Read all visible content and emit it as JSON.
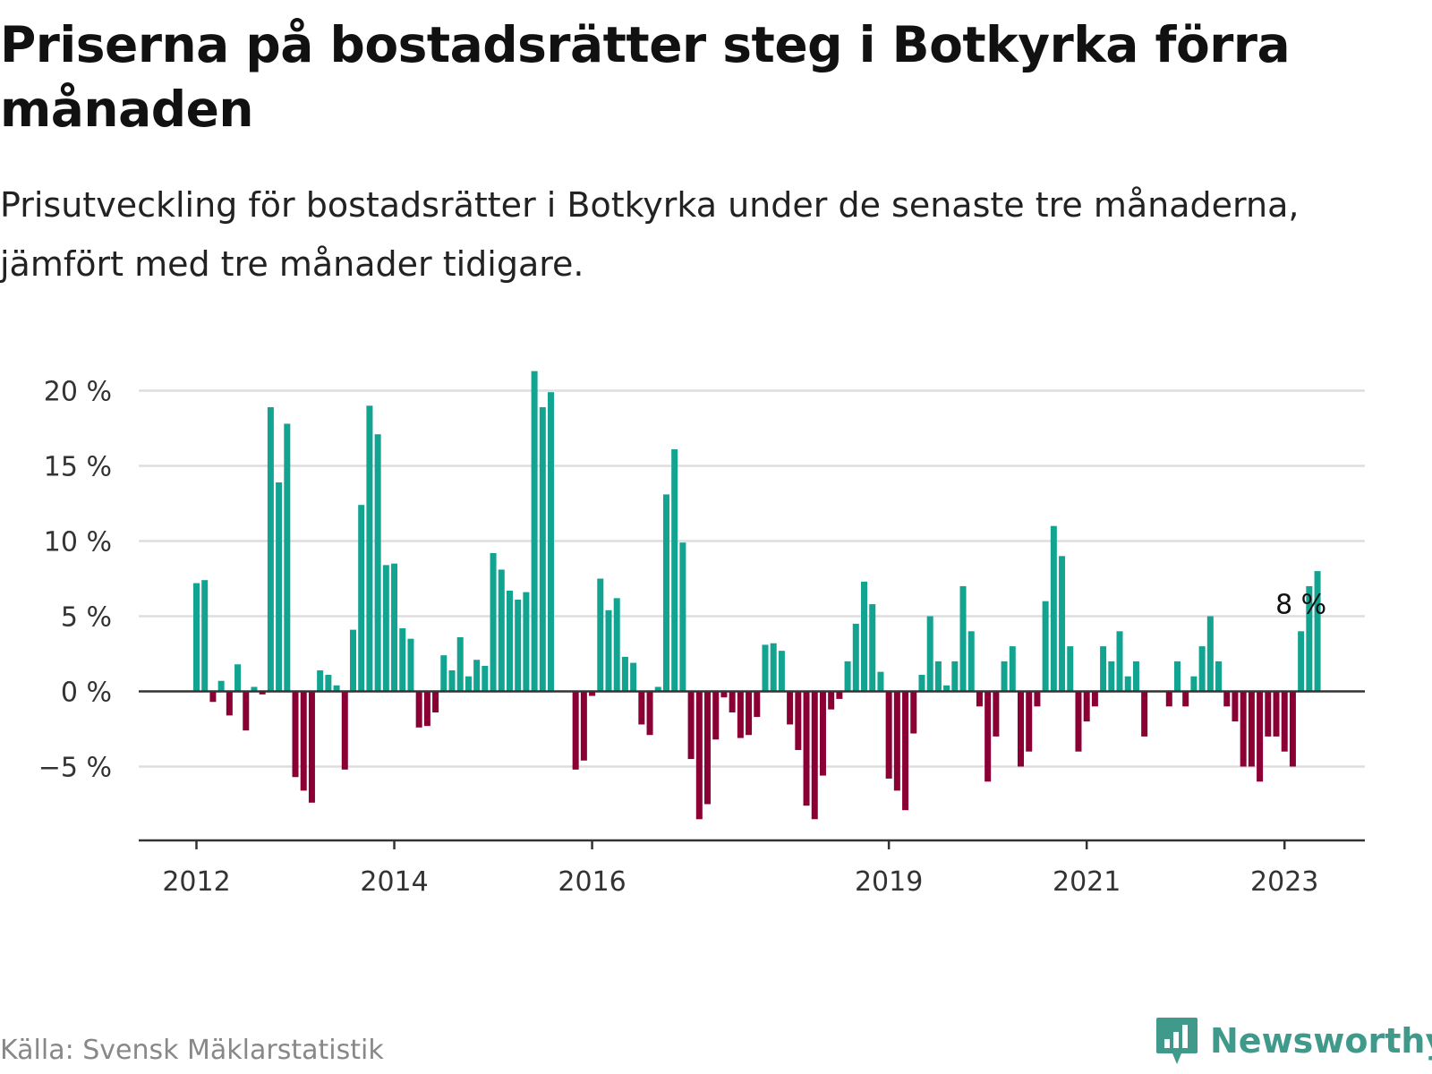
{
  "title": "Priserna på bostadsrätter steg i Botkyrka förra månaden",
  "subtitle": "Prisutveckling för bostadsrätter i Botkyrka under de senaste tre månaderna, jämfört med tre månader tidigare.",
  "source": "Källa: Svensk Mäklarstatistik",
  "brand": "Newsworthy",
  "colors": {
    "positive": "#12a391",
    "negative": "#8b0034",
    "grid": "#dddddd",
    "axis": "#333333",
    "brand": "#3f9a8c"
  },
  "chart_data": {
    "type": "bar",
    "title": "Priserna på bostadsrätter steg i Botkyrka förra månaden",
    "ylabel": "",
    "xlabel": "",
    "unit": "%",
    "ylim": [
      -10,
      21.5
    ],
    "yticks": [
      -5,
      0,
      5,
      10,
      15,
      20
    ],
    "ytick_labels": [
      "−5 %",
      "0 %",
      "5 %",
      "10 %",
      "15 %",
      "20 %"
    ],
    "xticks": [
      {
        "label": "2012",
        "index": 0
      },
      {
        "label": "2014",
        "index": 24
      },
      {
        "label": "2016",
        "index": 48
      },
      {
        "label": "2019",
        "index": 84
      },
      {
        "label": "2021",
        "index": 108
      },
      {
        "label": "2023",
        "index": 132
      }
    ],
    "start": "2012-01",
    "end": "2023-03",
    "annotation": {
      "text": "8 %",
      "index": 134
    },
    "values": [
      7.2,
      7.4,
      -0.7,
      0.7,
      -1.6,
      1.8,
      -2.6,
      0.3,
      -0.2,
      18.9,
      13.9,
      17.8,
      -5.7,
      -6.6,
      -7.4,
      1.4,
      1.1,
      0.4,
      -5.2,
      4.1,
      12.4,
      19.0,
      17.1,
      8.4,
      8.5,
      4.2,
      3.5,
      -2.4,
      -2.3,
      -1.4,
      2.4,
      1.4,
      3.6,
      1.0,
      2.1,
      1.7,
      9.2,
      8.1,
      6.7,
      6.1,
      6.6,
      21.3,
      18.9,
      19.9,
      0,
      0,
      -5.2,
      -4.6,
      -0.3,
      7.5,
      5.4,
      6.2,
      2.3,
      1.9,
      -2.2,
      -2.9,
      0.3,
      13.1,
      16.1,
      9.9,
      -4.5,
      -8.5,
      -7.5,
      -3.2,
      -0.4,
      -1.4,
      -3.1,
      -2.9,
      -1.7,
      3.1,
      3.2,
      2.7,
      -2.2,
      -3.9,
      -7.6,
      -8.5,
      -5.6,
      -1.2,
      -0.5,
      2.0,
      4.5,
      7.3,
      5.8,
      1.3,
      -5.8,
      -6.6,
      -7.9,
      -2.8,
      1.1,
      5.0,
      2.0,
      0.4,
      2.0,
      7.0,
      4.0,
      -1.0,
      -6.0,
      -3.0,
      2.0,
      3.0,
      -5.0,
      -4.0,
      -1.0,
      6.0,
      11.0,
      9.0,
      3.0,
      -4.0,
      -2.0,
      -1.0,
      3.0,
      2.0,
      4.0,
      1.0,
      2.0,
      -3.0,
      0,
      0,
      -1.0,
      2.0,
      -1.0,
      1.0,
      3.0,
      5.0,
      2.0,
      -1.0,
      -2.0,
      -5.0,
      -5.0,
      -6.0,
      -3.0,
      -3.0,
      -4.0,
      -5.0,
      4.0,
      7.0,
      8.0
    ]
  }
}
